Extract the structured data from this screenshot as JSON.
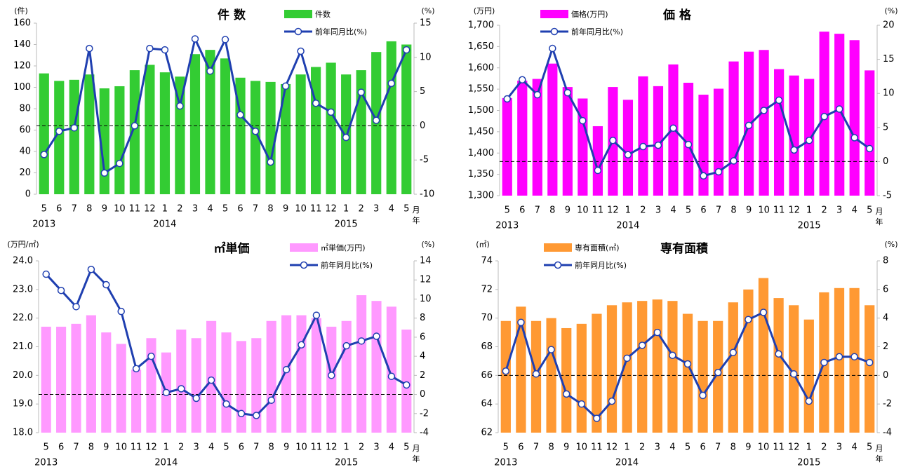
{
  "chart_data": [
    {
      "type": "combo",
      "title": "件 数",
      "y_unit": "(件)",
      "y2_unit": "(%)",
      "x_unit": "月",
      "year_unit": "年",
      "categories": [
        5,
        6,
        7,
        8,
        9,
        10,
        11,
        12,
        1,
        2,
        3,
        4,
        5,
        6,
        7,
        8,
        9,
        10,
        11,
        12,
        1,
        2,
        3,
        4,
        5
      ],
      "years": [
        "2013",
        "2014",
        "2015"
      ],
      "series": [
        {
          "name": "件数",
          "color": "#33cc33",
          "values": [
            113,
            106,
            107,
            112,
            99,
            101,
            116,
            121,
            114,
            110,
            131,
            135,
            127,
            109,
            106,
            105,
            103,
            112,
            119,
            123,
            112,
            116,
            133,
            143,
            140
          ]
        },
        {
          "name": "前年同月比(%)",
          "color": "#1f3fb0",
          "axis": "y2",
          "values": [
            -4.2,
            -0.8,
            -0.3,
            11.3,
            -6.9,
            -5.5,
            0,
            11.3,
            11.1,
            2.9,
            12.7,
            8,
            12.6,
            1.6,
            -0.8,
            -5.3,
            5.8,
            10.9,
            3.3,
            2,
            -1.7,
            4.9,
            0.8,
            6.2,
            11.1
          ]
        }
      ],
      "ylim": [
        0,
        160
      ],
      "yticks": [
        0,
        20,
        40,
        60,
        80,
        100,
        120,
        140,
        160
      ],
      "y2lim": [
        -10,
        15
      ],
      "y2ticks": [
        -10,
        -5,
        0,
        5,
        10,
        15
      ],
      "y2_reference": 0,
      "y2_negative_color": "#ff0000"
    },
    {
      "type": "combo",
      "title": "価 格",
      "y_unit": "(万円)",
      "y2_unit": "(%)",
      "x_unit": "月",
      "year_unit": "年",
      "categories": [
        5,
        6,
        7,
        8,
        9,
        10,
        11,
        12,
        1,
        2,
        3,
        4,
        5,
        6,
        7,
        8,
        9,
        10,
        11,
        12,
        1,
        2,
        3,
        4,
        5
      ],
      "years": [
        "2013",
        "2014",
        "2015"
      ],
      "series": [
        {
          "name": "価格(万円)",
          "color": "#ff00ff",
          "values": [
            1529,
            1570,
            1574,
            1610,
            1555,
            1528,
            1463,
            1555,
            1525,
            1580,
            1557,
            1608,
            1565,
            1537,
            1551,
            1615,
            1638,
            1642,
            1597,
            1582,
            1574,
            1685,
            1680,
            1665,
            1594
          ]
        },
        {
          "name": "前年同月比(%)",
          "color": "#1f3fb0",
          "axis": "y2",
          "values": [
            9.2,
            12,
            9.8,
            16.6,
            10.1,
            6,
            -1.3,
            3.1,
            1,
            2.2,
            2.4,
            4.9,
            2.5,
            -2.1,
            -1.5,
            0.1,
            5.3,
            7.5,
            9,
            1.7,
            3.1,
            6.6,
            7.7,
            3.5,
            1.9
          ]
        }
      ],
      "ylim": [
        1300,
        1700
      ],
      "yticks": [
        {
          "value": 1300,
          "label": "1,300"
        },
        {
          "value": 1350,
          "label": "1,350"
        },
        {
          "value": 1400,
          "label": "1,400"
        },
        {
          "value": 1450,
          "label": "1,450"
        },
        {
          "value": 1500,
          "label": "1,500"
        },
        {
          "value": 1550,
          "label": "1,550"
        },
        {
          "value": 1600,
          "label": "1,600"
        },
        {
          "value": 1650,
          "label": "1,650"
        },
        {
          "value": 1700,
          "label": "1,700"
        }
      ],
      "y2lim": [
        -5,
        20
      ],
      "y2ticks": [
        -5,
        0,
        5,
        10,
        15,
        20
      ],
      "y2_reference": 0,
      "y2_negative_color": "#ff0000"
    },
    {
      "type": "combo",
      "title": "㎡単価",
      "y_unit": "(万円/㎡)",
      "y2_unit": "(%)",
      "x_unit": "月",
      "year_unit": "年",
      "categories": [
        5,
        6,
        7,
        8,
        9,
        10,
        11,
        12,
        1,
        2,
        3,
        4,
        5,
        6,
        7,
        8,
        9,
        10,
        11,
        12,
        1,
        2,
        3,
        4,
        5
      ],
      "years": [
        "2013",
        "2014",
        "2015"
      ],
      "series": [
        {
          "name": "㎡単価(万円)",
          "color": "#ff99ff",
          "values": [
            21.7,
            21.7,
            21.8,
            22.1,
            21.5,
            21.1,
            20.2,
            21.3,
            20.8,
            21.6,
            21.3,
            21.9,
            21.5,
            21.2,
            21.3,
            21.9,
            22.1,
            22.1,
            22,
            21.7,
            21.9,
            22.8,
            22.6,
            22.4,
            21.6
          ]
        },
        {
          "name": "前年同月比(%)",
          "color": "#1f3fb0",
          "axis": "y2",
          "values": [
            12.6,
            10.9,
            9.2,
            13.1,
            11.5,
            8.7,
            2.7,
            4,
            0.2,
            0.6,
            -0.4,
            1.5,
            -1,
            -2,
            -2.2,
            -0.6,
            2.6,
            5.2,
            8.3,
            2,
            5.1,
            5.6,
            6.1,
            1.9,
            1
          ]
        }
      ],
      "ylim": [
        18,
        24
      ],
      "yticks": [
        {
          "value": 18,
          "label": "18.0"
        },
        {
          "value": 19,
          "label": "19.0"
        },
        {
          "value": 20,
          "label": "20.0"
        },
        {
          "value": 21,
          "label": "21.0"
        },
        {
          "value": 22,
          "label": "22.0"
        },
        {
          "value": 23,
          "label": "23.0"
        },
        {
          "value": 24,
          "label": "24.0"
        }
      ],
      "y2lim": [
        -4,
        14
      ],
      "y2ticks": [
        -4,
        -2,
        0,
        2,
        4,
        6,
        8,
        10,
        12,
        14
      ],
      "y2_reference": 0,
      "y2_negative_color": "#ff0000"
    },
    {
      "type": "combo",
      "title": "専有面積",
      "y_unit": "(㎡)",
      "y2_unit": "(%)",
      "x_unit": "月",
      "year_unit": "年",
      "categories": [
        5,
        6,
        7,
        8,
        9,
        10,
        11,
        12,
        1,
        2,
        3,
        4,
        5,
        6,
        7,
        8,
        9,
        10,
        11,
        12,
        1,
        2,
        3,
        4,
        5
      ],
      "years": [
        "2013",
        "2014",
        "2015"
      ],
      "series": [
        {
          "name": "専有面積(㎡)",
          "color": "#ff9933",
          "values": [
            69.8,
            70.8,
            69.8,
            70,
            69.3,
            69.6,
            70.3,
            70.9,
            71.1,
            71.2,
            71.3,
            71.2,
            70.3,
            69.8,
            69.8,
            71.1,
            72,
            72.8,
            71.4,
            70.9,
            69.9,
            71.8,
            72.1,
            72.1,
            70.9
          ]
        },
        {
          "name": "前年同月比(%)",
          "color": "#1f3fb0",
          "axis": "y2",
          "values": [
            0.3,
            3.7,
            0.1,
            1.8,
            -1.3,
            -2,
            -3,
            -1.8,
            1.2,
            2.1,
            3,
            1.4,
            0.8,
            -1.4,
            0.2,
            1.6,
            3.9,
            4.4,
            1.5,
            0.1,
            -1.8,
            0.9,
            1.3,
            1.3,
            0.9
          ]
        }
      ],
      "ylim": [
        62,
        74
      ],
      "yticks": [
        62,
        64,
        66,
        68,
        70,
        72,
        74
      ],
      "y2lim": [
        -4,
        8
      ],
      "y2ticks": [
        -4,
        -2,
        0,
        2,
        4,
        6,
        8
      ],
      "y2_reference": 0,
      "y2_negative_color": "#ff0000"
    }
  ]
}
